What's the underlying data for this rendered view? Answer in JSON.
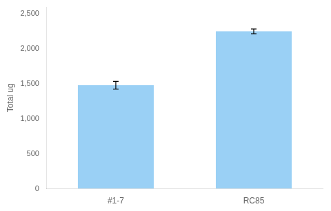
{
  "chart_data": {
    "type": "bar",
    "categories": [
      "#1-7",
      "RC85"
    ],
    "values": [
      1480,
      2250
    ],
    "errors": [
      55,
      35
    ],
    "ylabel": "Total ug",
    "ylim": [
      0,
      2600
    ],
    "yticks": [
      0,
      500,
      1000,
      1500,
      2000,
      2500
    ],
    "grid": false
  }
}
